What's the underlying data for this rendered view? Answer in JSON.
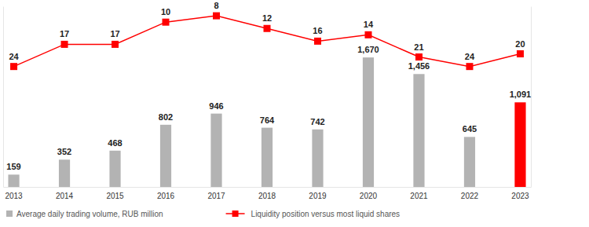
{
  "chart_data": {
    "type": "bar",
    "categories": [
      "2013",
      "2014",
      "2015",
      "2016",
      "2017",
      "2018",
      "2019",
      "2020",
      "2021",
      "2022",
      "2023"
    ],
    "series": [
      {
        "name": "Average daily trading volume, RUB million",
        "type": "bar",
        "colors": [
          "#b3b3b3",
          "#b3b3b3",
          "#b3b3b3",
          "#b3b3b3",
          "#b3b3b3",
          "#b3b3b3",
          "#b3b3b3",
          "#b3b3b3",
          "#b3b3b3",
          "#b3b3b3",
          "#ff0000"
        ],
        "values": [
          159,
          352,
          468,
          802,
          946,
          764,
          742,
          1670,
          1456,
          645,
          1091
        ],
        "value_labels": [
          "159",
          "352",
          "468",
          "802",
          "946",
          "764",
          "742",
          "1,670",
          "1,456",
          "645",
          "1,091"
        ]
      },
      {
        "name": "Liquidity position versus most liquid shares",
        "type": "line",
        "axis": "y2",
        "color": "#ff0000",
        "marker": "square",
        "values": [
          24,
          17,
          17,
          10,
          8,
          12,
          16,
          14,
          21,
          24,
          20
        ]
      }
    ],
    "ylim": [
      0,
      2330
    ],
    "yticks": [],
    "y2lim": [
      62,
      5
    ],
    "y2ticks": [],
    "data_labels": true,
    "tick_labels": "x",
    "legend": "bottom",
    "grid": false
  }
}
